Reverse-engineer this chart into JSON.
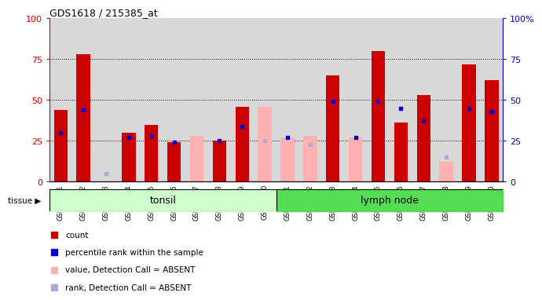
{
  "title": "GDS1618 / 215385_at",
  "samples": [
    "GSM51381",
    "GSM51382",
    "GSM51383",
    "GSM51384",
    "GSM51385",
    "GSM51386",
    "GSM51387",
    "GSM51388",
    "GSM51389",
    "GSM51390",
    "GSM51371",
    "GSM51372",
    "GSM51373",
    "GSM51374",
    "GSM51375",
    "GSM51376",
    "GSM51377",
    "GSM51378",
    "GSM51379",
    "GSM51380"
  ],
  "red_values": [
    44,
    78,
    0,
    30,
    35,
    24,
    0,
    25,
    46,
    0,
    0,
    0,
    65,
    0,
    80,
    36,
    53,
    0,
    72,
    62
  ],
  "blue_values": [
    30,
    44,
    0,
    27,
    28,
    24,
    0,
    25,
    34,
    0,
    27,
    0,
    49,
    27,
    49,
    45,
    37,
    0,
    45,
    43
  ],
  "pink_values": [
    0,
    0,
    0,
    0,
    0,
    0,
    28,
    0,
    0,
    46,
    27,
    28,
    0,
    27,
    0,
    0,
    0,
    12,
    0,
    0
  ],
  "lightblue_values": [
    0,
    0,
    5,
    0,
    0,
    0,
    0,
    0,
    0,
    25,
    0,
    23,
    0,
    0,
    0,
    0,
    0,
    15,
    0,
    0
  ],
  "tonsil_count": 10,
  "lymph_count": 10,
  "tonsil_label": "tonsil",
  "lymph_label": "lymph node",
  "tissue_label": "tissue",
  "red_color": "#cc0000",
  "blue_color": "#0000cc",
  "pink_color": "#ffb0b0",
  "lightblue_color": "#aaaadd",
  "tonsil_bg": "#ccffcc",
  "lymph_bg": "#55dd55",
  "col_bg": "#d8d8d8",
  "plot_bg": "#ffffff",
  "ylim": [
    0,
    100
  ],
  "legend_items": [
    "count",
    "percentile rank within the sample",
    "value, Detection Call = ABSENT",
    "rank, Detection Call = ABSENT"
  ]
}
